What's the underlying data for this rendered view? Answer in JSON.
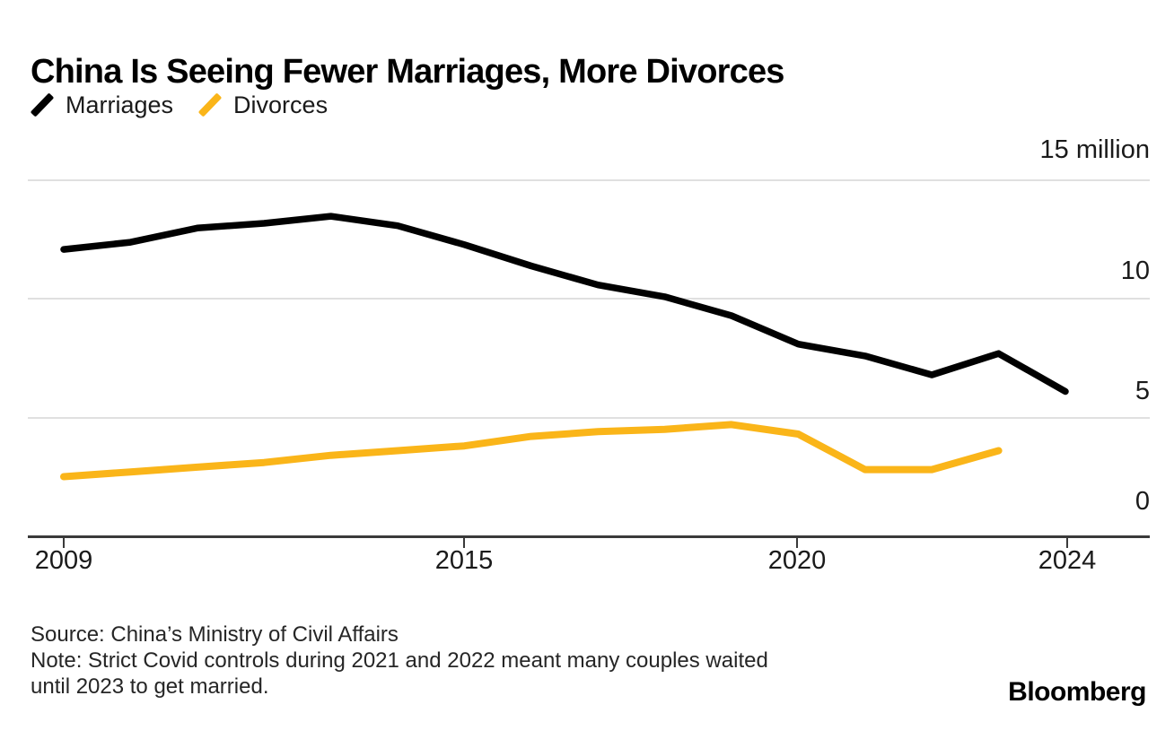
{
  "header": {
    "title": "China Is Seeing Fewer Marriages, More Divorces"
  },
  "legend": {
    "items": [
      {
        "label": "Marriages",
        "color": "#000000"
      },
      {
        "label": "Divorces",
        "color": "#FAB519"
      }
    ]
  },
  "y_axis": {
    "labels": [
      {
        "text": "15 million",
        "value": 15
      },
      {
        "text": "10",
        "value": 10
      },
      {
        "text": "5",
        "value": 5
      },
      {
        "text": "0",
        "value": 0
      }
    ]
  },
  "x_axis": {
    "ticks": [
      2009,
      2015,
      2020,
      2024
    ]
  },
  "footer": {
    "source": "Source: China’s Ministry of Civil Affairs",
    "note_line1": "Note: Strict Covid controls during 2021 and 2022 meant many couples waited",
    "note_line2": "until 2023 to get married.",
    "brand": "Bloomberg"
  },
  "chart_data": {
    "type": "line",
    "title": "China Is Seeing Fewer Marriages, More Divorces",
    "xlabel": "",
    "ylabel": "million",
    "x": [
      2009,
      2010,
      2011,
      2012,
      2013,
      2014,
      2015,
      2016,
      2017,
      2018,
      2019,
      2020,
      2021,
      2022,
      2023,
      2024
    ],
    "series": [
      {
        "name": "Marriages",
        "color": "#000000",
        "values": [
          12.1,
          12.4,
          13.0,
          13.2,
          13.5,
          13.1,
          12.3,
          11.4,
          10.6,
          10.1,
          9.3,
          8.1,
          7.6,
          6.8,
          7.7,
          6.1
        ]
      },
      {
        "name": "Divorces",
        "color": "#FAB519",
        "values": [
          2.5,
          2.7,
          2.9,
          3.1,
          3.4,
          3.6,
          3.8,
          4.2,
          4.4,
          4.5,
          4.7,
          4.3,
          2.8,
          2.8,
          3.6
        ]
      }
    ],
    "ylim": [
      0,
      15
    ],
    "xlim": [
      2009,
      2024
    ],
    "yticks": [
      0,
      5,
      10,
      15
    ],
    "xticks": [
      2009,
      2015,
      2020,
      2024
    ],
    "grid": "horizontal",
    "legend_position": "top-left"
  }
}
